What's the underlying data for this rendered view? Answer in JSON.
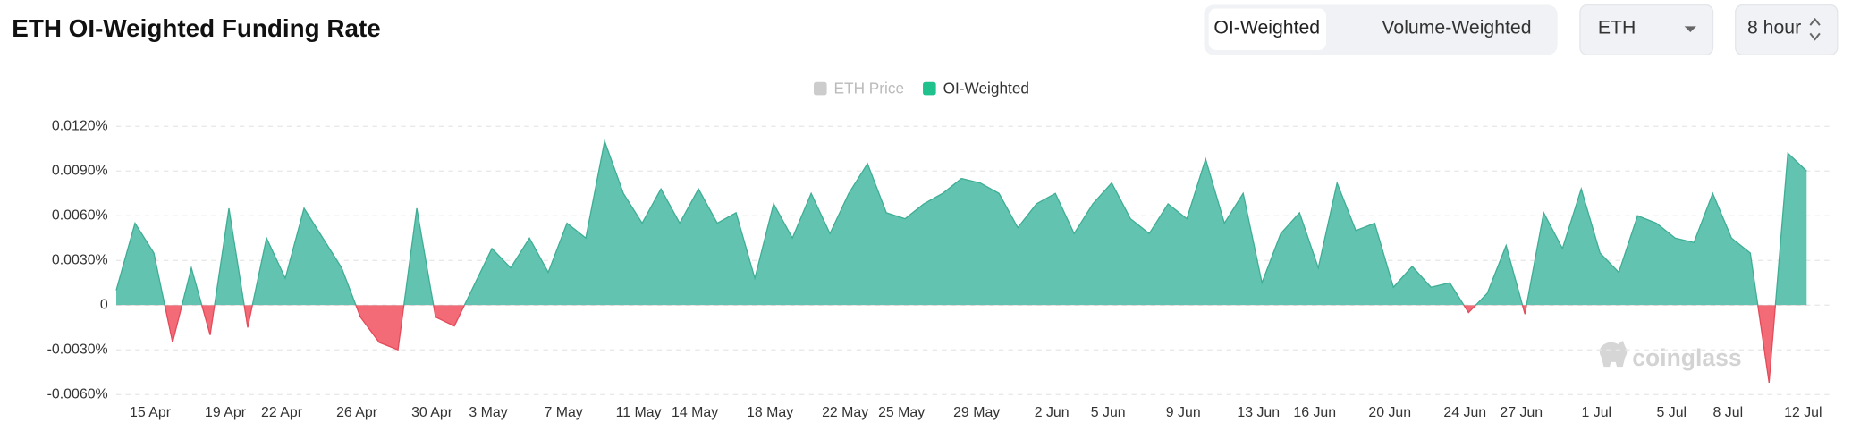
{
  "chart_data": {
    "type": "area",
    "title": "ETH OI-Weighted Funding Rate",
    "controls": {
      "tabs": [
        "OI-Weighted",
        "Volume-Weighted"
      ],
      "symbol": "ETH",
      "interval": "8 hour"
    },
    "watermark": "coinglass",
    "hidden_series": [
      {
        "name": "ETH Price",
        "color": "#cccccc"
      }
    ],
    "categories": [
      null,
      null,
      "15 Apr",
      null,
      null,
      null,
      "19 Apr",
      null,
      null,
      "22 Apr",
      null,
      null,
      null,
      "26 Apr",
      null,
      null,
      null,
      "30 Apr",
      null,
      null,
      "3 May",
      null,
      null,
      null,
      "7 May",
      null,
      null,
      null,
      "11 May",
      null,
      null,
      "14 May",
      null,
      null,
      null,
      "18 May",
      null,
      null,
      null,
      "22 May",
      null,
      null,
      "25 May",
      null,
      null,
      null,
      "29 May",
      null,
      null,
      null,
      "2 Jun",
      null,
      null,
      "5 Jun",
      null,
      null,
      null,
      "9 Jun",
      null,
      null,
      null,
      "13 Jun",
      null,
      null,
      "16 Jun",
      null,
      null,
      null,
      "20 Jun",
      null,
      null,
      null,
      "24 Jun",
      null,
      null,
      "27 Jun",
      null,
      null,
      null,
      "1 Jul",
      null,
      null,
      null,
      "5 Jul",
      null,
      null,
      "8 Jul",
      null,
      null,
      null,
      "12 Jul"
    ],
    "series": [
      {
        "name": "OI-Weighted",
        "color": "#1fc28c",
        "fill": "#62c4b0",
        "stroke": "#3fae95",
        "negative_fill": "#f36b77",
        "negative_stroke": "#e24c5b",
        "values": [
          0.001,
          0.0055,
          0.0035,
          -0.0025,
          0.0025,
          -0.002,
          0.0065,
          -0.0015,
          0.0045,
          0.0018,
          0.0065,
          0.0045,
          0.0025,
          -0.0008,
          -0.0025,
          -0.003,
          0.0065,
          -0.0008,
          -0.0014,
          0.0012,
          0.0038,
          0.0025,
          0.0045,
          0.0022,
          0.0055,
          0.0045,
          0.011,
          0.0075,
          0.0055,
          0.0078,
          0.0055,
          0.0078,
          0.0055,
          0.0062,
          0.0018,
          0.0068,
          0.0045,
          0.0075,
          0.0048,
          0.0075,
          0.0095,
          0.0062,
          0.0058,
          0.0068,
          0.0075,
          0.0085,
          0.0082,
          0.0075,
          0.0052,
          0.0068,
          0.0075,
          0.0048,
          0.0068,
          0.0082,
          0.0058,
          0.0048,
          0.0068,
          0.0058,
          0.0098,
          0.0055,
          0.0075,
          0.0015,
          0.0048,
          0.0062,
          0.0025,
          0.0082,
          0.005,
          0.0055,
          0.0012,
          0.0026,
          0.0012,
          0.0015,
          -0.0005,
          0.0008,
          0.004,
          -0.0006,
          0.0062,
          0.0038,
          0.0078,
          0.0035,
          0.0022,
          0.006,
          0.0055,
          0.0045,
          0.0042,
          0.0075,
          0.0045,
          0.0035,
          -0.0052,
          0.0102,
          0.009
        ]
      }
    ],
    "ylim": [
      -0.0066,
      0.0129
    ],
    "yticks": [
      {
        "value": 0.012,
        "label": "0.0120%"
      },
      {
        "value": 0.009,
        "label": "0.0090%"
      },
      {
        "value": 0.006,
        "label": "0.0060%"
      },
      {
        "value": 0.003,
        "label": "0.0030%"
      },
      0,
      {
        "value": -0.003,
        "label": "-0.0030%"
      },
      {
        "value": -0.006,
        "label": "-0.0060%"
      }
    ],
    "grid": true
  }
}
